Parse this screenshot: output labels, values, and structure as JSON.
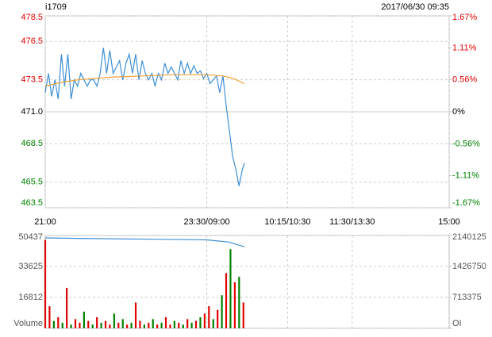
{
  "header": {
    "symbol": "i1709",
    "datetime": "2017/06/30 09:35"
  },
  "chart_data": [
    {
      "type": "line",
      "xlim": [
        0,
        375
      ],
      "xticks": [
        {
          "value": 0,
          "label": "21:00"
        },
        {
          "value": 150,
          "label": "23:30/09:00"
        },
        {
          "value": 225,
          "label": "10:15/10:30"
        },
        {
          "value": 285,
          "label": "11:30/13:30"
        },
        {
          "value": 375,
          "label": "15:00"
        }
      ],
      "ylim": [
        463.5,
        478.5
      ],
      "yticks": [
        478.5,
        476.5,
        473.5,
        {
          "value": 471,
          "label": "471.0"
        },
        468.5,
        465.5,
        463.5
      ],
      "y2lim": [
        -1.67,
        1.67
      ],
      "y2ticks": [
        {
          "value": 1.67,
          "label": "1.67%"
        },
        {
          "value": 1.11,
          "label": "1.11%"
        },
        {
          "value": 0.56,
          "label": "0.56%"
        },
        {
          "value": 0,
          "label": "0%"
        },
        {
          "value": -0.56,
          "label": "-0.56%"
        },
        {
          "value": -1.11,
          "label": "-1.11%"
        },
        {
          "value": -1.67,
          "label": "-1.67%"
        }
      ],
      "up_color": "#e00000",
      "down_color": "#008000",
      "series": [
        {
          "color": "#3d8fd6",
          "x": [
            0,
            3,
            6,
            9,
            12,
            15,
            18,
            21,
            24,
            27,
            30,
            33,
            36,
            39,
            42,
            45,
            48,
            51,
            54,
            57,
            60,
            63,
            66,
            69,
            72,
            75,
            78,
            81,
            84,
            87,
            90,
            93,
            96,
            99,
            102,
            105,
            108,
            111,
            114,
            117,
            120,
            123,
            126,
            129,
            132,
            135,
            138,
            141,
            144,
            147,
            150,
            153,
            156,
            159,
            162,
            165,
            168,
            171,
            174,
            177,
            180,
            183,
            185
          ],
          "values": [
            472.5,
            474,
            472.2,
            473.5,
            472,
            475.5,
            473,
            475.5,
            472,
            473.5,
            473,
            474,
            473.5,
            473,
            473.5,
            473.5,
            473,
            474,
            476,
            474,
            475.8,
            474,
            474.5,
            475,
            473.5,
            474.8,
            475.5,
            474,
            475.5,
            473.5,
            475,
            474,
            473.5,
            474,
            473,
            474,
            473.5,
            474.8,
            474,
            474.5,
            474,
            473.5,
            475,
            474,
            474.8,
            474,
            474.6,
            474,
            474.2,
            473.6,
            474,
            473.2,
            473.5,
            473.8,
            472.5,
            473.8,
            471.5,
            469.5,
            467.5,
            466.5,
            465.2,
            466.5,
            467
          ]
        },
        {
          "color": "#f0a030",
          "x": [
            0,
            15,
            30,
            60,
            90,
            120,
            150,
            165,
            175,
            185
          ],
          "values": [
            473,
            473.3,
            473.5,
            473.7,
            473.8,
            473.9,
            473.9,
            473.8,
            473.6,
            473.2
          ]
        }
      ]
    },
    {
      "type": "bar",
      "xlim": [
        0,
        375
      ],
      "ylim": [
        0,
        50437
      ],
      "yticks": [
        50437,
        33625,
        16812,
        {
          "value": 0,
          "label": "Volume"
        }
      ],
      "y2lim": [
        0,
        2140125
      ],
      "y2ticks": [
        2140125,
        1426750,
        713375,
        {
          "value": 0,
          "label": "OI"
        }
      ],
      "x": [
        0,
        4,
        8,
        12,
        16,
        20,
        24,
        28,
        32,
        36,
        40,
        44,
        48,
        52,
        56,
        60,
        64,
        68,
        72,
        76,
        80,
        84,
        88,
        92,
        96,
        100,
        104,
        108,
        112,
        116,
        120,
        124,
        128,
        132,
        136,
        140,
        144,
        148,
        152,
        156,
        160,
        164,
        168,
        172,
        176,
        180,
        184
      ],
      "values": [
        48000,
        12000,
        4000,
        6000,
        3000,
        22000,
        2000,
        5000,
        3000,
        9000,
        4000,
        2000,
        6000,
        3000,
        4000,
        2000,
        8000,
        3000,
        5000,
        2000,
        3000,
        14000,
        4000,
        2000,
        3000,
        5000,
        2000,
        3000,
        6000,
        2000,
        4000,
        3000,
        2000,
        5000,
        3000,
        4000,
        6000,
        8000,
        12000,
        5000,
        10000,
        18000,
        30000,
        43000,
        25000,
        28000,
        14000
      ],
      "colors": [
        "#e00000",
        "#e00000",
        "#008000",
        "#e00000",
        "#008000",
        "#e00000",
        "#008000",
        "#e00000",
        "#e00000",
        "#008000",
        "#e00000",
        "#008000",
        "#e00000",
        "#008000",
        "#e00000",
        "#e00000",
        "#008000",
        "#e00000",
        "#008000",
        "#e00000",
        "#008000",
        "#e00000",
        "#e00000",
        "#008000",
        "#e00000",
        "#008000",
        "#e00000",
        "#008000",
        "#e00000",
        "#e00000",
        "#008000",
        "#e00000",
        "#008000",
        "#e00000",
        "#008000",
        "#e00000",
        "#008000",
        "#e00000",
        "#e00000",
        "#008000",
        "#e00000",
        "#008000",
        "#e00000",
        "#008000",
        "#e00000",
        "#008000",
        "#e00000"
      ],
      "series": [
        {
          "axis": "y2",
          "color": "#3d8fd6",
          "x": [
            0,
            30,
            60,
            100,
            150,
            170,
            185
          ],
          "values": [
            2085000,
            2075000,
            2065000,
            2055000,
            2040000,
            1990000,
            1880000
          ]
        }
      ]
    }
  ]
}
